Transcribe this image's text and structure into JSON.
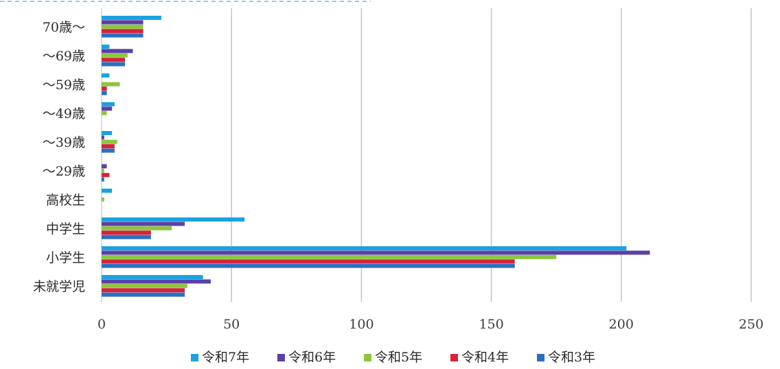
{
  "chart_data": {
    "type": "bar",
    "orientation": "horizontal",
    "categories": [
      "70歳〜",
      "〜69歳",
      "〜59歳",
      "〜49歳",
      "〜39歳",
      "〜29歳",
      "高校生",
      "中学生",
      "小学生",
      "未就学児"
    ],
    "series": [
      {
        "name": "令和7年",
        "color": "#1aa3e0",
        "values": [
          23,
          3,
          3,
          5,
          4,
          0,
          4,
          55,
          202,
          39
        ]
      },
      {
        "name": "令和6年",
        "color": "#5b3fa8",
        "values": [
          16,
          12,
          0,
          4,
          1,
          2,
          0,
          32,
          211,
          42
        ]
      },
      {
        "name": "令和5年",
        "color": "#8cc63f",
        "values": [
          16,
          10,
          7,
          2,
          6,
          1,
          1,
          27,
          175,
          33
        ]
      },
      {
        "name": "令和4年",
        "color": "#d6223a",
        "values": [
          16,
          9,
          2,
          0,
          5,
          3,
          0,
          19,
          159,
          32
        ]
      },
      {
        "name": "令和3年",
        "color": "#2a6fc4",
        "values": [
          16,
          9,
          2,
          0,
          5,
          1,
          0,
          19,
          159,
          32
        ]
      }
    ],
    "xticks": [
      "0",
      "50",
      "100",
      "150",
      "200",
      "250"
    ],
    "xlim": [
      0,
      250
    ],
    "title": "",
    "xlabel": "",
    "ylabel": "",
    "grid": "vertical",
    "legend_position": "bottom"
  }
}
